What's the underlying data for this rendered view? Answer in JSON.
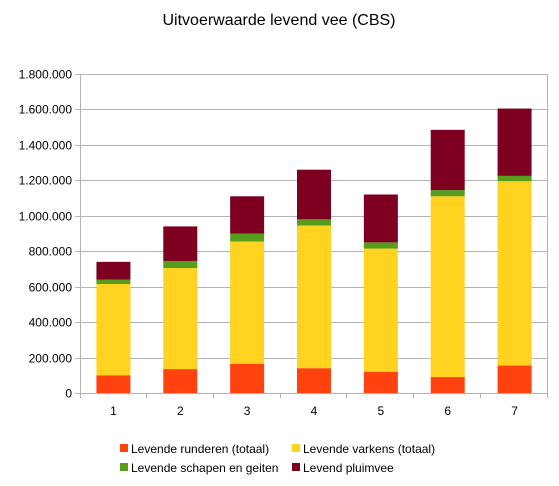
{
  "chart_data": {
    "type": "bar",
    "stacked": true,
    "title": "Uitvoerwaarde levend vee (CBS)",
    "xlabel": "",
    "ylabel": "",
    "categories": [
      "1",
      "2",
      "3",
      "4",
      "5",
      "6",
      "7"
    ],
    "ylim": [
      0,
      1800000
    ],
    "yticks": [
      "0",
      "200.000",
      "400.000",
      "600.000",
      "800.000",
      "1.000.000",
      "1.200.000",
      "1.400.000",
      "1.600.000",
      "1.800.000"
    ],
    "grid": "horizontal",
    "legend_position": "bottom",
    "series": [
      {
        "name": "Levende runderen (totaal)",
        "color": "#ff420e",
        "values": [
          100000,
          135000,
          165000,
          140000,
          120000,
          90000,
          155000
        ]
      },
      {
        "name": "Levende varkens (totaal)",
        "color": "#ffd320",
        "values": [
          515000,
          570000,
          690000,
          805000,
          695000,
          1020000,
          1040000
        ]
      },
      {
        "name": "Levende schapen en geiten",
        "color": "#579d1c",
        "values": [
          25000,
          40000,
          45000,
          35000,
          35000,
          35000,
          30000
        ]
      },
      {
        "name": "Levend pluimvee",
        "color": "#7e0021",
        "values": [
          100000,
          195000,
          210000,
          280000,
          270000,
          340000,
          380000
        ]
      }
    ]
  }
}
